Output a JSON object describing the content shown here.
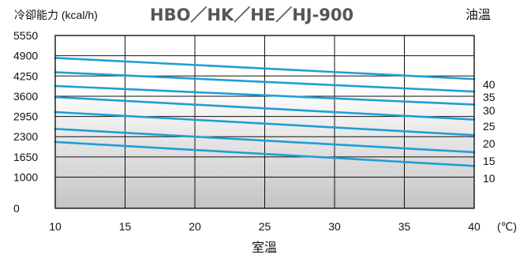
{
  "chart_data": {
    "type": "line",
    "title": "HBO／HK／HE／HJ-900",
    "ylabel": "冷卻能力 (kcal/h)",
    "xlabel": "室溫",
    "x_unit": "(℃)",
    "legend_title": "油溫",
    "xlim": [
      10,
      40
    ],
    "ylim": [
      0,
      5550
    ],
    "x_ticks": [
      10,
      15,
      20,
      25,
      30,
      35,
      40
    ],
    "y_ticks": [
      0,
      1000,
      1650,
      2300,
      2950,
      3600,
      4250,
      4900,
      5550
    ],
    "grid": true,
    "line_color": "#1e9fd6",
    "series": [
      {
        "name": "40",
        "x": [
          10,
          40
        ],
        "y": [
          4830,
          4150
        ]
      },
      {
        "name": "35",
        "x": [
          10,
          40
        ],
        "y": [
          4370,
          3750
        ]
      },
      {
        "name": "30",
        "x": [
          10,
          40
        ],
        "y": [
          3930,
          3330
        ]
      },
      {
        "name": "25",
        "x": [
          10,
          40
        ],
        "y": [
          3570,
          2850
        ]
      },
      {
        "name": "20",
        "x": [
          10,
          40
        ],
        "y": [
          3090,
          2350
        ]
      },
      {
        "name": "15",
        "x": [
          10,
          40
        ],
        "y": [
          2550,
          1800
        ]
      },
      {
        "name": "10",
        "x": [
          10,
          40
        ],
        "y": [
          2130,
          1360
        ]
      }
    ]
  }
}
